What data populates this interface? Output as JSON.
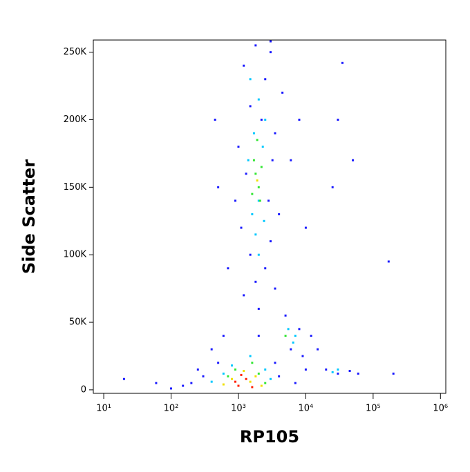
{
  "chart_data": {
    "type": "scatter",
    "xlabel": "RP105",
    "ylabel": "Side Scatter",
    "xscale": "log",
    "xlim": [
      7,
      1200000
    ],
    "xticks": [
      {
        "value": 10,
        "label": "10¹"
      },
      {
        "value": 100,
        "label": "10²"
      },
      {
        "value": 1000,
        "label": "10³"
      },
      {
        "value": 10000,
        "label": "10⁴"
      },
      {
        "value": 100000,
        "label": "10⁵"
      },
      {
        "value": 1000000,
        "label": "10⁶"
      }
    ],
    "ylim": [
      -2600,
      259000
    ],
    "yticks": [
      0,
      {
        "value": 50000,
        "label": "50K"
      },
      {
        "value": 100000,
        "label": "100K"
      },
      {
        "value": 150000,
        "label": "150K"
      },
      {
        "value": 200000,
        "label": "200K"
      },
      {
        "value": 250000,
        "label": "250K"
      }
    ],
    "series": [
      {
        "color": "#1a1aff",
        "x": [
          1200,
          1800,
          2500,
          3000,
          1500,
          2200,
          3500,
          1000,
          1300,
          3200,
          900,
          4000,
          1100,
          3000,
          1500,
          2500,
          1800,
          3500,
          1200,
          2000,
          5000,
          8000,
          12000,
          6000,
          9000,
          15000,
          20000,
          30000,
          45000,
          60000,
          500,
          300,
          200,
          150,
          100,
          400,
          600,
          700,
          500,
          450,
          6000,
          8000,
          30000,
          50000,
          25000,
          10000,
          4500,
          2800,
          2000,
          3500,
          4000,
          7000,
          10000,
          250,
          35000,
          170000,
          200000,
          20,
          60,
          3000
        ],
        "y": [
          240000,
          255000,
          230000,
          250000,
          210000,
          200000,
          190000,
          180000,
          160000,
          170000,
          140000,
          130000,
          120000,
          110000,
          100000,
          90000,
          80000,
          75000,
          70000,
          60000,
          55000,
          45000,
          40000,
          30000,
          25000,
          30000,
          15000,
          12000,
          14000,
          12000,
          20000,
          10000,
          5000,
          3000,
          1000,
          30000,
          40000,
          90000,
          150000,
          200000,
          170000,
          200000,
          200000,
          170000,
          150000,
          120000,
          220000,
          140000,
          40000,
          20000,
          10000,
          5000,
          15000,
          15000,
          242000,
          95000,
          12000,
          8000,
          5000,
          258000
        ]
      },
      {
        "color": "#00c8ff",
        "x": [
          1500,
          2000,
          2500,
          1700,
          2300,
          1400,
          2000,
          1600,
          2400,
          1800,
          2000,
          5500,
          7000,
          6500,
          30000,
          25000,
          600,
          800,
          2500,
          1500,
          3000,
          400
        ],
        "y": [
          230000,
          215000,
          200000,
          190000,
          180000,
          170000,
          140000,
          130000,
          125000,
          115000,
          100000,
          45000,
          40000,
          35000,
          15000,
          13000,
          12000,
          18000,
          15000,
          25000,
          8000,
          6000
        ]
      },
      {
        "color": "#33e633",
        "x": [
          1900,
          1700,
          2200,
          1800,
          2000,
          1600,
          2100,
          700,
          900,
          2000,
          1600,
          2500,
          5000
        ],
        "y": [
          185000,
          170000,
          165000,
          160000,
          150000,
          145000,
          140000,
          10000,
          15000,
          12000,
          20000,
          5000,
          40000
        ]
      },
      {
        "color": "#f0e000",
        "x": [
          1900,
          800,
          1200,
          1800,
          600,
          1500,
          2200
        ],
        "y": [
          155000,
          8000,
          14000,
          10000,
          4000,
          6000,
          3000
        ]
      },
      {
        "color": "#ff2000",
        "x": [
          1000,
          1300,
          900,
          1600,
          1100
        ],
        "y": [
          3000,
          8000,
          6000,
          2000,
          11000
        ]
      }
    ]
  }
}
